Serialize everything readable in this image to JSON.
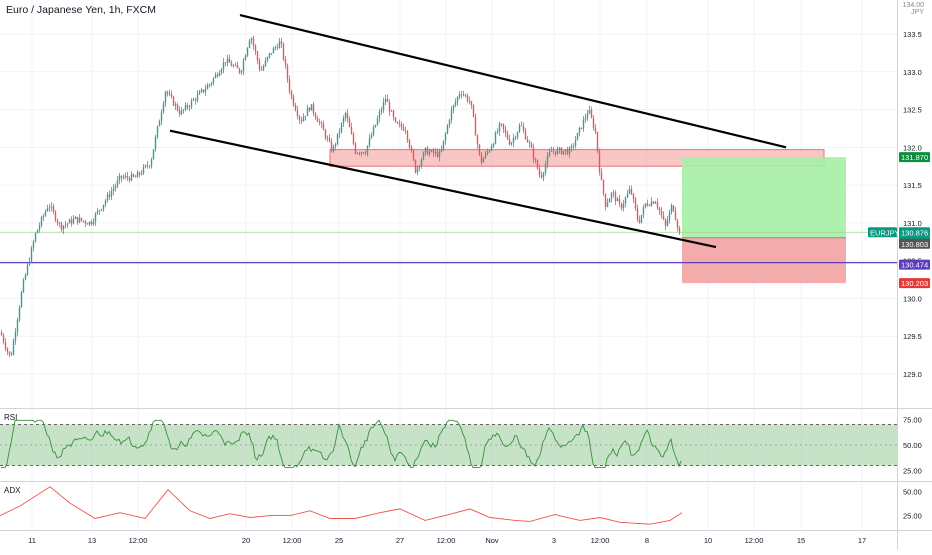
{
  "header": {
    "title": "Euro / Japanese Yen, 1h, FXCM",
    "corner_top": "134.00",
    "corner_bottom": "JPY"
  },
  "colors": {
    "up": "#26a69a",
    "down": "#ef5350",
    "price_green": "#089981",
    "support_zone": "#f7b3b3",
    "target_zone": "#a5f0a5",
    "stop_zone": "#f2a2a2",
    "horizontal_line": "#5c3bbd",
    "rsi_line": "#3a8f3a",
    "rsi_band": "#99cc99",
    "adx_line": "#ef5350"
  },
  "chart_data": {
    "type": "candlestick",
    "symbol": "EURJPY",
    "price_axis": {
      "ticks": [
        133.5,
        133.0,
        132.5,
        132.0,
        131.5,
        131.0,
        130.5,
        130.0,
        129.5,
        129.0
      ],
      "range": [
        128.55,
        133.95
      ]
    },
    "time_axis": {
      "labels": [
        "11",
        "13",
        "12:00",
        "20",
        "12:00",
        "25",
        "27",
        "12:00",
        "Nov",
        "3",
        "12:00",
        "8",
        "10",
        "12:00",
        "15",
        "17"
      ]
    },
    "candles_trend": {
      "waypoints": [
        [
          0,
          129.55
        ],
        [
          10,
          129.2
        ],
        [
          22,
          130.15
        ],
        [
          35,
          130.85
        ],
        [
          48,
          131.25
        ],
        [
          60,
          130.95
        ],
        [
          75,
          131.05
        ],
        [
          90,
          131.0
        ],
        [
          105,
          131.3
        ],
        [
          120,
          131.6
        ],
        [
          135,
          131.6
        ],
        [
          150,
          131.8
        ],
        [
          165,
          132.75
        ],
        [
          180,
          132.45
        ],
        [
          195,
          132.65
        ],
        [
          210,
          132.85
        ],
        [
          225,
          133.15
        ],
        [
          240,
          133.0
        ],
        [
          250,
          133.5
        ],
        [
          260,
          133.0
        ],
        [
          270,
          133.25
        ],
        [
          280,
          133.4
        ],
        [
          290,
          132.7
        ],
        [
          300,
          132.35
        ],
        [
          310,
          132.55
        ],
        [
          320,
          132.3
        ],
        [
          332,
          131.95
        ],
        [
          345,
          132.45
        ],
        [
          355,
          131.95
        ],
        [
          365,
          131.95
        ],
        [
          375,
          132.3
        ],
        [
          385,
          132.65
        ],
        [
          395,
          132.3
        ],
        [
          405,
          132.25
        ],
        [
          415,
          131.7
        ],
        [
          425,
          131.95
        ],
        [
          440,
          131.9
        ],
        [
          450,
          132.45
        ],
        [
          460,
          132.75
        ],
        [
          470,
          132.6
        ],
        [
          480,
          131.8
        ],
        [
          490,
          132.0
        ],
        [
          500,
          132.3
        ],
        [
          510,
          132.05
        ],
        [
          520,
          132.3
        ],
        [
          530,
          132.0
        ],
        [
          540,
          131.6
        ],
        [
          550,
          131.95
        ],
        [
          560,
          131.95
        ],
        [
          570,
          131.95
        ],
        [
          580,
          132.25
        ],
        [
          588,
          132.5
        ],
        [
          595,
          132.2
        ],
        [
          600,
          131.6
        ],
        [
          605,
          131.25
        ],
        [
          612,
          131.4
        ],
        [
          620,
          131.2
        ],
        [
          630,
          131.45
        ],
        [
          638,
          131.0
        ],
        [
          645,
          131.25
        ],
        [
          655,
          131.3
        ],
        [
          665,
          130.95
        ],
        [
          672,
          131.25
        ],
        [
          680,
          130.8
        ]
      ]
    },
    "levels": {
      "current": 130.876,
      "entry": 130.803,
      "line": 130.474,
      "stop": 130.203,
      "target": 131.87
    },
    "price_labels": [
      {
        "name": "target",
        "text": "131.870"
      },
      {
        "name": "symbol",
        "text": "EURJPY"
      },
      {
        "name": "current",
        "text": "130.876"
      },
      {
        "name": "countdown",
        "text": "17:13"
      },
      {
        "name": "entry",
        "text": "130.803"
      },
      {
        "name": "line",
        "text": "130.474"
      },
      {
        "name": "stop",
        "text": "130.203"
      }
    ],
    "channel": {
      "upper": [
        [
          240,
          133.75
        ],
        [
          786,
          132.0
        ]
      ],
      "lower": [
        [
          170,
          132.22
        ],
        [
          716,
          130.68
        ]
      ]
    },
    "support_zone": {
      "x": [
        330,
        824
      ],
      "price_top": 131.97,
      "price_bottom": 131.75
    },
    "position_zone": {
      "x": [
        682,
        846
      ],
      "target": 131.87,
      "entry": 130.803,
      "stop": 130.203
    },
    "rsi": {
      "label": "RSI",
      "ticks": [
        75.0,
        50.0,
        25.0
      ],
      "band": [
        70,
        30
      ],
      "range": [
        15,
        85
      ]
    },
    "adx": {
      "label": "ADX",
      "ticks": [
        50.0,
        25.0
      ],
      "range": [
        10,
        60
      ],
      "waypoints": [
        [
          0,
          25
        ],
        [
          20,
          35
        ],
        [
          50,
          55
        ],
        [
          70,
          38
        ],
        [
          95,
          22
        ],
        [
          120,
          28
        ],
        [
          145,
          22
        ],
        [
          168,
          52
        ],
        [
          190,
          30
        ],
        [
          210,
          22
        ],
        [
          230,
          27
        ],
        [
          250,
          23
        ],
        [
          270,
          25
        ],
        [
          290,
          25
        ],
        [
          310,
          30
        ],
        [
          330,
          22
        ],
        [
          355,
          22
        ],
        [
          380,
          28
        ],
        [
          400,
          32
        ],
        [
          425,
          20
        ],
        [
          445,
          25
        ],
        [
          470,
          32
        ],
        [
          490,
          23
        ],
        [
          515,
          20
        ],
        [
          530,
          19
        ],
        [
          555,
          26
        ],
        [
          580,
          20
        ],
        [
          600,
          23
        ],
        [
          620,
          18
        ],
        [
          650,
          16
        ],
        [
          670,
          20
        ],
        [
          682,
          28
        ]
      ]
    }
  }
}
